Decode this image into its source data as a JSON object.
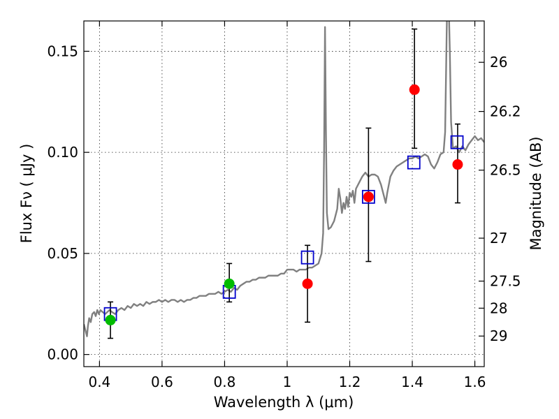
{
  "chart_data": {
    "type": "scatter",
    "xlabel": "Wavelength  λ (μm)",
    "ylabel": "Flux  Fν  ( μJy )",
    "ylabel_right": "Magnitude (AB)",
    "xlim": [
      0.35,
      1.63
    ],
    "ylim": [
      -0.006,
      0.165
    ],
    "grid": true,
    "x_ticks": [
      {
        "value": 0.4,
        "label": "0.4"
      },
      {
        "value": 0.6,
        "label": "0.6"
      },
      {
        "value": 0.8,
        "label": "0.8"
      },
      {
        "value": 1.0,
        "label": "1"
      },
      {
        "value": 1.2,
        "label": "1.2"
      },
      {
        "value": 1.4,
        "label": "1.4"
      },
      {
        "value": 1.6,
        "label": "1.6"
      }
    ],
    "y_ticks": [
      {
        "value": 0.0,
        "label": "0.00"
      },
      {
        "value": 0.05,
        "label": "0.05"
      },
      {
        "value": 0.1,
        "label": "0.10"
      },
      {
        "value": 0.15,
        "label": "0.15"
      }
    ],
    "right_ticks": [
      {
        "value": 26,
        "label": "26"
      },
      {
        "value": 26.2,
        "label": "26.2"
      },
      {
        "value": 26.5,
        "label": "26.5"
      },
      {
        "value": 27,
        "label": "27"
      },
      {
        "value": 27.5,
        "label": "27.5"
      },
      {
        "value": 28,
        "label": "28"
      },
      {
        "value": 29,
        "label": "29"
      }
    ],
    "colors": {
      "spectrum": "#808080",
      "model_squares": "#0000cc",
      "red_points": "#ff0000",
      "green_points": "#00bb00",
      "errorbar": "#000000"
    },
    "series": [
      {
        "kind": "spectrum",
        "points": [
          [
            0.35,
            0.015
          ],
          [
            0.355,
            0.012
          ],
          [
            0.36,
            0.009
          ],
          [
            0.363,
            0.014
          ],
          [
            0.367,
            0.018
          ],
          [
            0.372,
            0.016
          ],
          [
            0.377,
            0.02
          ],
          [
            0.383,
            0.021
          ],
          [
            0.388,
            0.019
          ],
          [
            0.393,
            0.022
          ],
          [
            0.398,
            0.02
          ],
          [
            0.403,
            0.022
          ],
          [
            0.41,
            0.021
          ],
          [
            0.418,
            0.02
          ],
          [
            0.425,
            0.021
          ],
          [
            0.432,
            0.022
          ],
          [
            0.44,
            0.021
          ],
          [
            0.45,
            0.02
          ],
          [
            0.46,
            0.022
          ],
          [
            0.47,
            0.023
          ],
          [
            0.48,
            0.022
          ],
          [
            0.49,
            0.024
          ],
          [
            0.5,
            0.023
          ],
          [
            0.51,
            0.025
          ],
          [
            0.52,
            0.024
          ],
          [
            0.53,
            0.025
          ],
          [
            0.54,
            0.024
          ],
          [
            0.55,
            0.026
          ],
          [
            0.56,
            0.025
          ],
          [
            0.57,
            0.026
          ],
          [
            0.58,
            0.026
          ],
          [
            0.59,
            0.027
          ],
          [
            0.6,
            0.026
          ],
          [
            0.61,
            0.027
          ],
          [
            0.62,
            0.026
          ],
          [
            0.63,
            0.027
          ],
          [
            0.64,
            0.027
          ],
          [
            0.65,
            0.026
          ],
          [
            0.66,
            0.027
          ],
          [
            0.67,
            0.026
          ],
          [
            0.68,
            0.027
          ],
          [
            0.69,
            0.027
          ],
          [
            0.7,
            0.028
          ],
          [
            0.71,
            0.028
          ],
          [
            0.72,
            0.029
          ],
          [
            0.73,
            0.029
          ],
          [
            0.74,
            0.029
          ],
          [
            0.75,
            0.03
          ],
          [
            0.76,
            0.03
          ],
          [
            0.77,
            0.03
          ],
          [
            0.78,
            0.031
          ],
          [
            0.79,
            0.03
          ],
          [
            0.8,
            0.031
          ],
          [
            0.81,
            0.032
          ],
          [
            0.82,
            0.031
          ],
          [
            0.83,
            0.033
          ],
          [
            0.84,
            0.032
          ],
          [
            0.85,
            0.034
          ],
          [
            0.86,
            0.035
          ],
          [
            0.87,
            0.036
          ],
          [
            0.88,
            0.036
          ],
          [
            0.89,
            0.037
          ],
          [
            0.9,
            0.037
          ],
          [
            0.91,
            0.038
          ],
          [
            0.92,
            0.038
          ],
          [
            0.93,
            0.038
          ],
          [
            0.94,
            0.039
          ],
          [
            0.95,
            0.039
          ],
          [
            0.96,
            0.039
          ],
          [
            0.97,
            0.039
          ],
          [
            0.98,
            0.04
          ],
          [
            0.99,
            0.04
          ],
          [
            1.0,
            0.042
          ],
          [
            1.01,
            0.042
          ],
          [
            1.02,
            0.042
          ],
          [
            1.03,
            0.041
          ],
          [
            1.04,
            0.042
          ],
          [
            1.05,
            0.042
          ],
          [
            1.06,
            0.042
          ],
          [
            1.07,
            0.043
          ],
          [
            1.08,
            0.043
          ],
          [
            1.09,
            0.044
          ],
          [
            1.1,
            0.045
          ],
          [
            1.11,
            0.05
          ],
          [
            1.115,
            0.06
          ],
          [
            1.118,
            0.1
          ],
          [
            1.121,
            0.162
          ],
          [
            1.124,
            0.11
          ],
          [
            1.127,
            0.07
          ],
          [
            1.132,
            0.062
          ],
          [
            1.14,
            0.063
          ],
          [
            1.15,
            0.066
          ],
          [
            1.155,
            0.069
          ],
          [
            1.16,
            0.072
          ],
          [
            1.165,
            0.082
          ],
          [
            1.17,
            0.077
          ],
          [
            1.175,
            0.07
          ],
          [
            1.18,
            0.075
          ],
          [
            1.185,
            0.072
          ],
          [
            1.19,
            0.078
          ],
          [
            1.195,
            0.073
          ],
          [
            1.2,
            0.08
          ],
          [
            1.205,
            0.078
          ],
          [
            1.21,
            0.081
          ],
          [
            1.215,
            0.075
          ],
          [
            1.22,
            0.082
          ],
          [
            1.23,
            0.085
          ],
          [
            1.24,
            0.088
          ],
          [
            1.25,
            0.09
          ],
          [
            1.26,
            0.088
          ],
          [
            1.27,
            0.089
          ],
          [
            1.28,
            0.089
          ],
          [
            1.29,
            0.088
          ],
          [
            1.3,
            0.084
          ],
          [
            1.31,
            0.078
          ],
          [
            1.315,
            0.075
          ],
          [
            1.32,
            0.08
          ],
          [
            1.33,
            0.088
          ],
          [
            1.34,
            0.091
          ],
          [
            1.35,
            0.093
          ],
          [
            1.36,
            0.094
          ],
          [
            1.37,
            0.095
          ],
          [
            1.38,
            0.096
          ],
          [
            1.39,
            0.097
          ],
          [
            1.4,
            0.097
          ],
          [
            1.41,
            0.098
          ],
          [
            1.42,
            0.097
          ],
          [
            1.43,
            0.098
          ],
          [
            1.44,
            0.099
          ],
          [
            1.45,
            0.098
          ],
          [
            1.46,
            0.094
          ],
          [
            1.47,
            0.092
          ],
          [
            1.48,
            0.095
          ],
          [
            1.49,
            0.099
          ],
          [
            1.5,
            0.1
          ],
          [
            1.505,
            0.11
          ],
          [
            1.508,
            0.14
          ],
          [
            1.511,
            0.17
          ],
          [
            1.514,
            0.17
          ],
          [
            1.517,
            0.17
          ],
          [
            1.52,
            0.15
          ],
          [
            1.524,
            0.115
          ],
          [
            1.53,
            0.102
          ],
          [
            1.54,
            0.103
          ],
          [
            1.55,
            0.1
          ],
          [
            1.56,
            0.103
          ],
          [
            1.57,
            0.101
          ],
          [
            1.58,
            0.104
          ],
          [
            1.59,
            0.106
          ],
          [
            1.6,
            0.108
          ],
          [
            1.61,
            0.106
          ],
          [
            1.62,
            0.107
          ],
          [
            1.63,
            0.105
          ]
        ]
      },
      {
        "kind": "model_squares",
        "points": [
          [
            0.435,
            0.02
          ],
          [
            0.815,
            0.031
          ],
          [
            1.065,
            0.048
          ],
          [
            1.26,
            0.078
          ],
          [
            1.405,
            0.095
          ],
          [
            1.543,
            0.105
          ]
        ]
      },
      {
        "kind": "red_points",
        "points": [
          {
            "x": 1.065,
            "y": 0.035,
            "lo": 0.016,
            "hi": 0.054
          },
          {
            "x": 1.26,
            "y": 0.078,
            "lo": 0.046,
            "hi": 0.112
          },
          {
            "x": 1.407,
            "y": 0.131,
            "lo": 0.102,
            "hi": 0.161
          },
          {
            "x": 1.545,
            "y": 0.094,
            "lo": 0.075,
            "hi": 0.114
          }
        ]
      },
      {
        "kind": "green_points",
        "points": [
          {
            "x": 0.435,
            "y": 0.017,
            "lo": 0.008,
            "hi": 0.026
          },
          {
            "x": 0.815,
            "y": 0.035,
            "lo": 0.026,
            "hi": 0.045
          }
        ]
      }
    ]
  }
}
